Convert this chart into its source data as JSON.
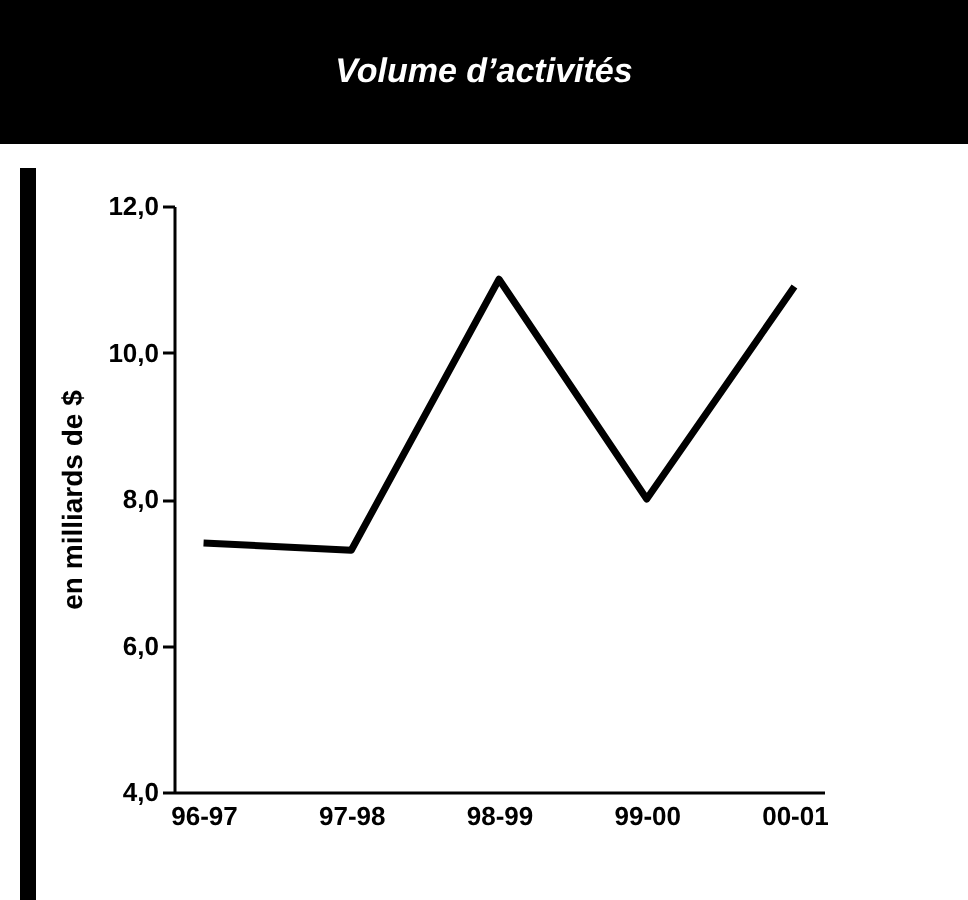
{
  "chart_data": {
    "type": "line",
    "title": "Volume d’activités",
    "ylabel": "en milliards de $",
    "categories": [
      "96-97",
      "97-98",
      "98-99",
      "99-00",
      "00-01"
    ],
    "series": [
      {
        "color": "#000000",
        "values": [
          7.4,
          7.3,
          11.0,
          8.0,
          10.9
        ]
      }
    ],
    "ylim": [
      4,
      12
    ],
    "yticks": [
      {
        "value": 4,
        "label": "4,0"
      },
      {
        "value": 6,
        "label": "6,0"
      },
      {
        "value": 8,
        "label": "8,0"
      },
      {
        "value": 10,
        "label": "10,0"
      },
      {
        "value": 12,
        "label": "12,0"
      }
    ],
    "grid": false,
    "marker": "none",
    "line_style": "solid"
  }
}
